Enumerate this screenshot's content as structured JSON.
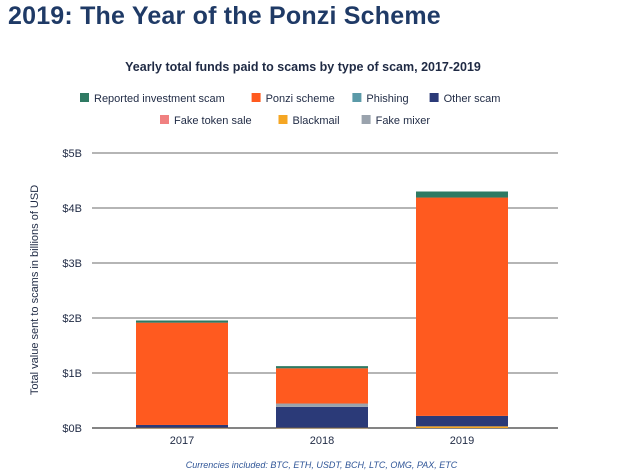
{
  "page": {
    "heading": "2019: The Year of the Ponzi Scheme",
    "footnote": "Currencies included: BTC, ETH, USDT, BCH, LTC, OMG, PAX, ETC"
  },
  "chart_data": {
    "type": "bar",
    "stacked": true,
    "title": "Yearly total funds paid to scams by type of scam, 2017-2019",
    "xlabel": "",
    "ylabel": "Total value sent to scams in billions of USD",
    "categories": [
      "2017",
      "2018",
      "2019"
    ],
    "ylim": [
      0,
      5
    ],
    "yticks": [
      {
        "value": 0,
        "label": "$0B"
      },
      {
        "value": 1,
        "label": "$1B"
      },
      {
        "value": 2,
        "label": "$2B"
      },
      {
        "value": 3,
        "label": "$3B"
      },
      {
        "value": 4,
        "label": "$4B"
      },
      {
        "value": 5,
        "label": "$5B"
      }
    ],
    "grid": true,
    "legend_position": "top",
    "series": [
      {
        "name": "Blackmail",
        "color": "#f5a623",
        "values": [
          0.005,
          0.005,
          0.03
        ]
      },
      {
        "name": "Other scam",
        "color": "#2b3a78",
        "values": [
          0.05,
          0.38,
          0.19
        ]
      },
      {
        "name": "Fake mixer",
        "color": "#9aa3ad",
        "values": [
          0.0,
          0.06,
          0.0
        ]
      },
      {
        "name": "Fake token sale",
        "color": "#f08080",
        "values": [
          0.0,
          0.0,
          0.0
        ]
      },
      {
        "name": "Phishing",
        "color": "#5b9aa8",
        "values": [
          0.0,
          0.0,
          0.0
        ]
      },
      {
        "name": "Ponzi scheme",
        "color": "#ff5a1f",
        "values": [
          1.86,
          0.64,
          3.97
        ]
      },
      {
        "name": "Reported investment scam",
        "color": "#2f7a63",
        "values": [
          0.04,
          0.04,
          0.11
        ]
      }
    ],
    "legend_rows": [
      [
        "Reported investment scam",
        "Ponzi scheme",
        "Phishing",
        "Other scam"
      ],
      [
        "Fake token sale",
        "Blackmail",
        "Fake mixer"
      ]
    ]
  }
}
